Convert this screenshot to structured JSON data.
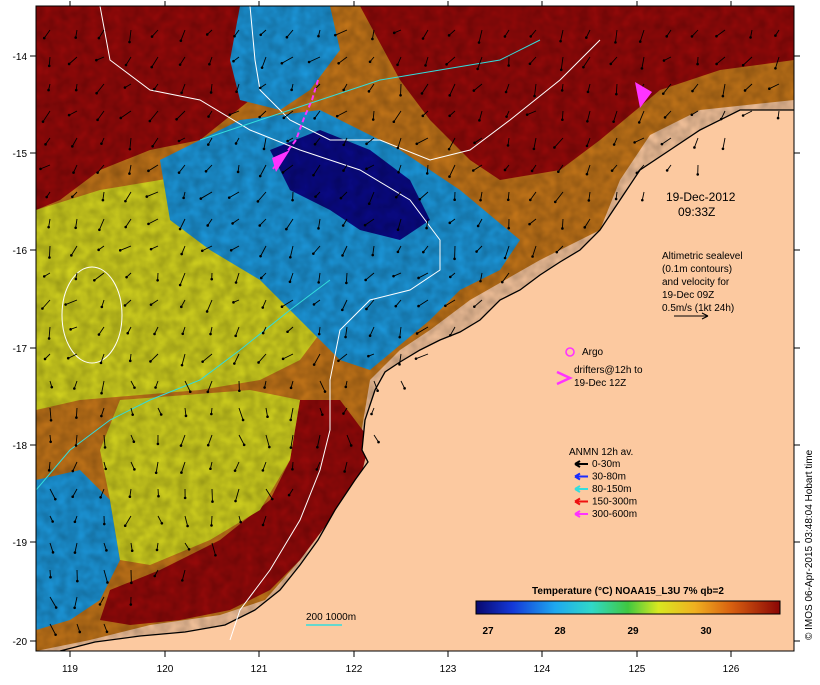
{
  "map": {
    "date": "19-Dec-2012",
    "time": "09:33Z",
    "altimetry_lines": [
      "Altimetric sealevel",
      "(0.1m contours)",
      "and velocity for",
      "19-Dec 09Z",
      "0.5m/s (1kt 24h)"
    ],
    "argo_label": "Argo",
    "drifters_lines": [
      "drifters@12h to",
      "19-Dec 12Z"
    ],
    "anmn": {
      "title": "ANMN 12h av.",
      "items": [
        {
          "label": "0-30m",
          "color": "#000000"
        },
        {
          "label": "30-80m",
          "color": "#1a2cff"
        },
        {
          "label": "80-150m",
          "color": "#33dddd"
        },
        {
          "label": "150-300m",
          "color": "#ee1111"
        },
        {
          "label": "300-600m",
          "color": "#ff33ff"
        }
      ]
    },
    "colorbar": {
      "title": "Temperature (°C) NOAA15_L3U 7% qb=2",
      "tick_labels": [
        "27",
        "28",
        "29",
        "30"
      ]
    },
    "scale_label": "200  1000m",
    "credit": "© IMOS 06-Apr-2015 03:48:04 Hobart time",
    "x_ticks": [
      "119",
      "120",
      "121",
      "122",
      "123",
      "124",
      "125",
      "126"
    ],
    "y_ticks": [
      "-14",
      "-15",
      "-16",
      "-17",
      "-18",
      "-19",
      "-20"
    ],
    "colors": {
      "land": "#fcc9a0",
      "t27": "#0a0a8a",
      "t28": "#1d9be0",
      "t29": "#d8d820",
      "t30": "#c8781a",
      "t31": "#9a0a0a"
    }
  }
}
